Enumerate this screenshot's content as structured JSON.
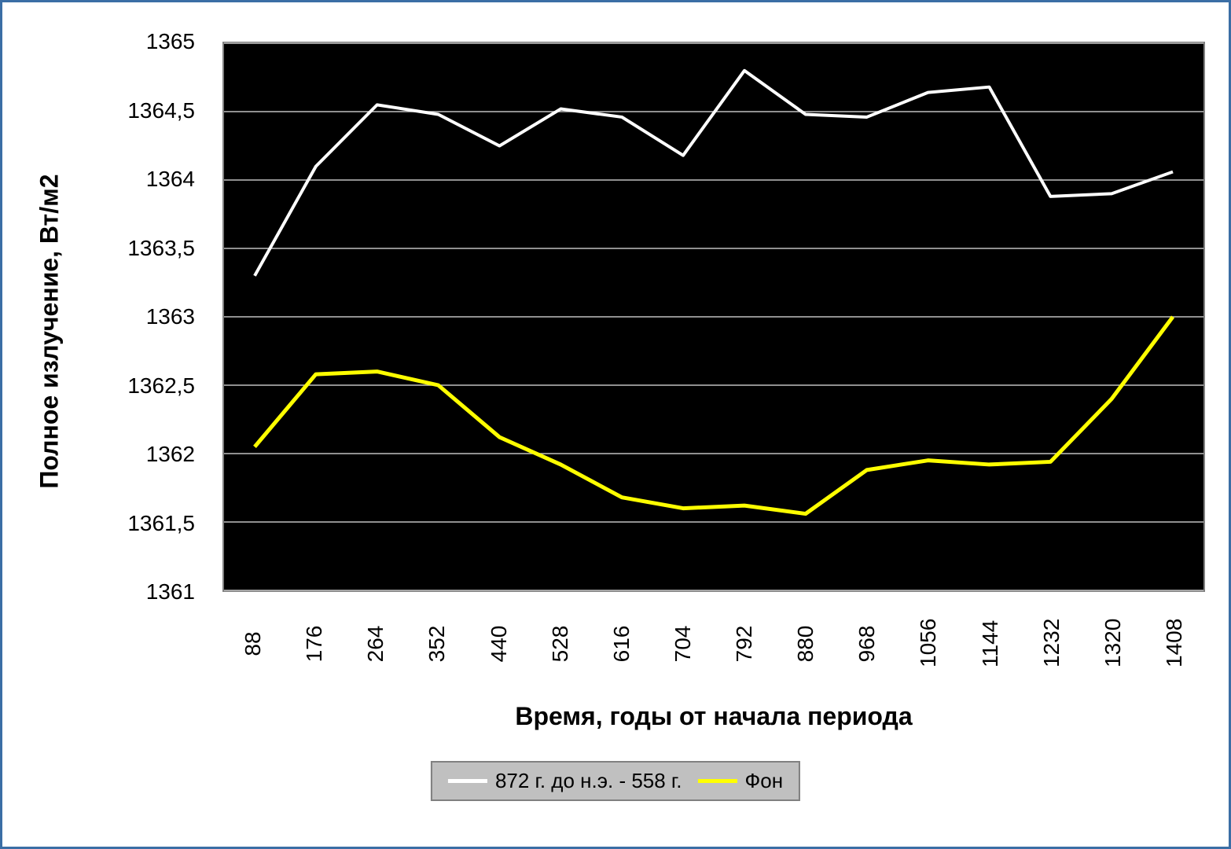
{
  "chart": {
    "type": "line",
    "plot_background": "#000000",
    "outer_background": "#ffffff",
    "border_color": "#3b6ea5",
    "grid_color": "#c0c0c0",
    "axis_color": "#808080",
    "y_axis": {
      "title": "Полное излучение, Вт/м2",
      "min": 1361,
      "max": 1365,
      "tick_step": 0.5,
      "ticks": [
        "1361",
        "1361,5",
        "1362",
        "1362,5",
        "1363",
        "1363,5",
        "1364",
        "1364,5",
        "1365"
      ],
      "title_fontsize": 32,
      "tick_fontsize": 28
    },
    "x_axis": {
      "title": "Время, годы от начала периода",
      "categories": [
        88,
        176,
        264,
        352,
        440,
        528,
        616,
        704,
        792,
        880,
        968,
        1056,
        1144,
        1232,
        1320,
        1408
      ],
      "title_fontsize": 32,
      "tick_fontsize": 28
    },
    "series": [
      {
        "name": "872 г. до н.э. - 558 г.",
        "color": "#ffffff",
        "line_width": 4,
        "values": [
          1363.3,
          1364.1,
          1364.55,
          1364.48,
          1364.25,
          1364.52,
          1364.46,
          1364.18,
          1364.8,
          1364.48,
          1364.46,
          1364.64,
          1364.68,
          1363.88,
          1363.9,
          1364.06
        ]
      },
      {
        "name": "Фон",
        "color": "#ffff00",
        "line_width": 5,
        "values": [
          1362.05,
          1362.58,
          1362.6,
          1362.5,
          1362.12,
          1361.92,
          1361.68,
          1361.6,
          1361.62,
          1361.56,
          1361.88,
          1361.95,
          1361.92,
          1361.94,
          1362.4,
          1363.0
        ]
      }
    ],
    "legend": {
      "background": "#c0c0c0",
      "border": "#808080",
      "position": "bottom",
      "fontsize": 26
    }
  }
}
